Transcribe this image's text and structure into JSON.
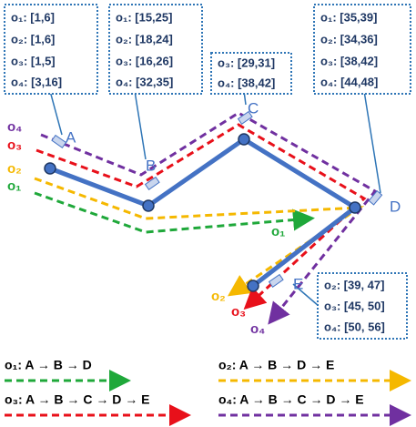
{
  "boxes": [
    {
      "rows": [
        "o₁: [1,6]",
        "o₂: [1,6]",
        "o₃: [1,5]",
        "o₄: [3,16]"
      ]
    },
    {
      "rows": [
        "o₁: [15,25]",
        "o₂: [18,24]",
        "o₃: [16,26]",
        "o₄: [32,35]"
      ]
    },
    {
      "rows": [
        "o₃: [29,31]",
        "o₄: [38,42]"
      ]
    },
    {
      "rows": [
        "o₁: [35,39]",
        "o₂: [34,36]",
        "o₃: [38,42]",
        "o₄: [44,48]"
      ]
    },
    {
      "rows": [
        "o₂: [39, 47]",
        "o₃: [45, 50]",
        "o₄: [50, 56]"
      ]
    }
  ],
  "nodes": [
    "A",
    "B",
    "C",
    "D",
    "E"
  ],
  "path_labels": [
    "o₄",
    "o₃",
    "o₂",
    "o₁",
    "o₁",
    "o₂",
    "o₃",
    "o₄"
  ],
  "legend": [
    "o₁: A → B → D",
    "o₂: A → B → D → E",
    "o₃: A → B → C → D → E",
    "o₄: A → B → C → D → E"
  ]
}
